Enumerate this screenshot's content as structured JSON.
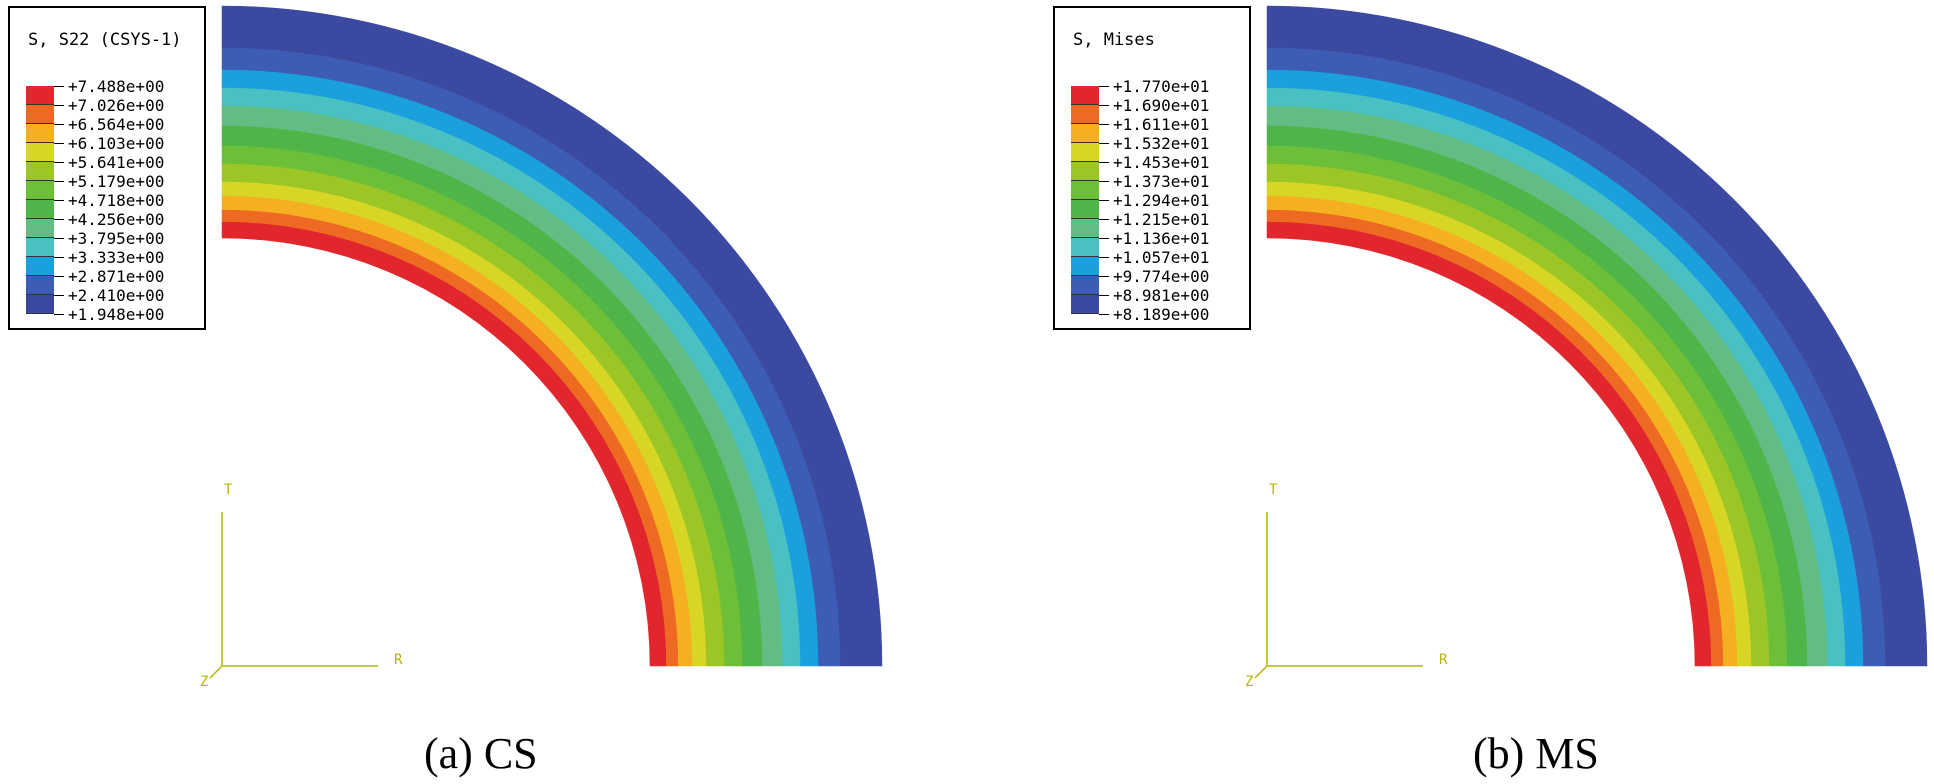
{
  "colors": [
    "#3b4aa0",
    "#3d5cb3",
    "#1aa0dd",
    "#49c0c2",
    "#62bd84",
    "#4fb548",
    "#6ebf38",
    "#9bc626",
    "#d8d624",
    "#f4b020",
    "#ee6a22",
    "#e2262d"
  ],
  "panels": [
    {
      "legend_title": "S, S22 (CSYS-1)",
      "legend_values": [
        "+7.488e+00",
        "+7.026e+00",
        "+6.564e+00",
        "+6.103e+00",
        "+5.641e+00",
        "+5.179e+00",
        "+4.718e+00",
        "+4.256e+00",
        "+3.795e+00",
        "+3.333e+00",
        "+2.871e+00",
        "+2.410e+00",
        "+1.948e+00"
      ],
      "axes": {
        "t": "T",
        "r": "R",
        "z": "Z"
      },
      "caption": "(a) CS"
    },
    {
      "legend_title": "S, Mises",
      "legend_values": [
        "+1.770e+01",
        "+1.690e+01",
        "+1.611e+01",
        "+1.532e+01",
        "+1.453e+01",
        "+1.373e+01",
        "+1.294e+01",
        "+1.215e+01",
        "+1.136e+01",
        "+1.057e+01",
        "+9.774e+00",
        "+8.981e+00",
        "+8.189e+00"
      ],
      "axes": {
        "t": "T",
        "r": "R",
        "z": "Z"
      },
      "caption": "(b) MS"
    }
  ]
}
